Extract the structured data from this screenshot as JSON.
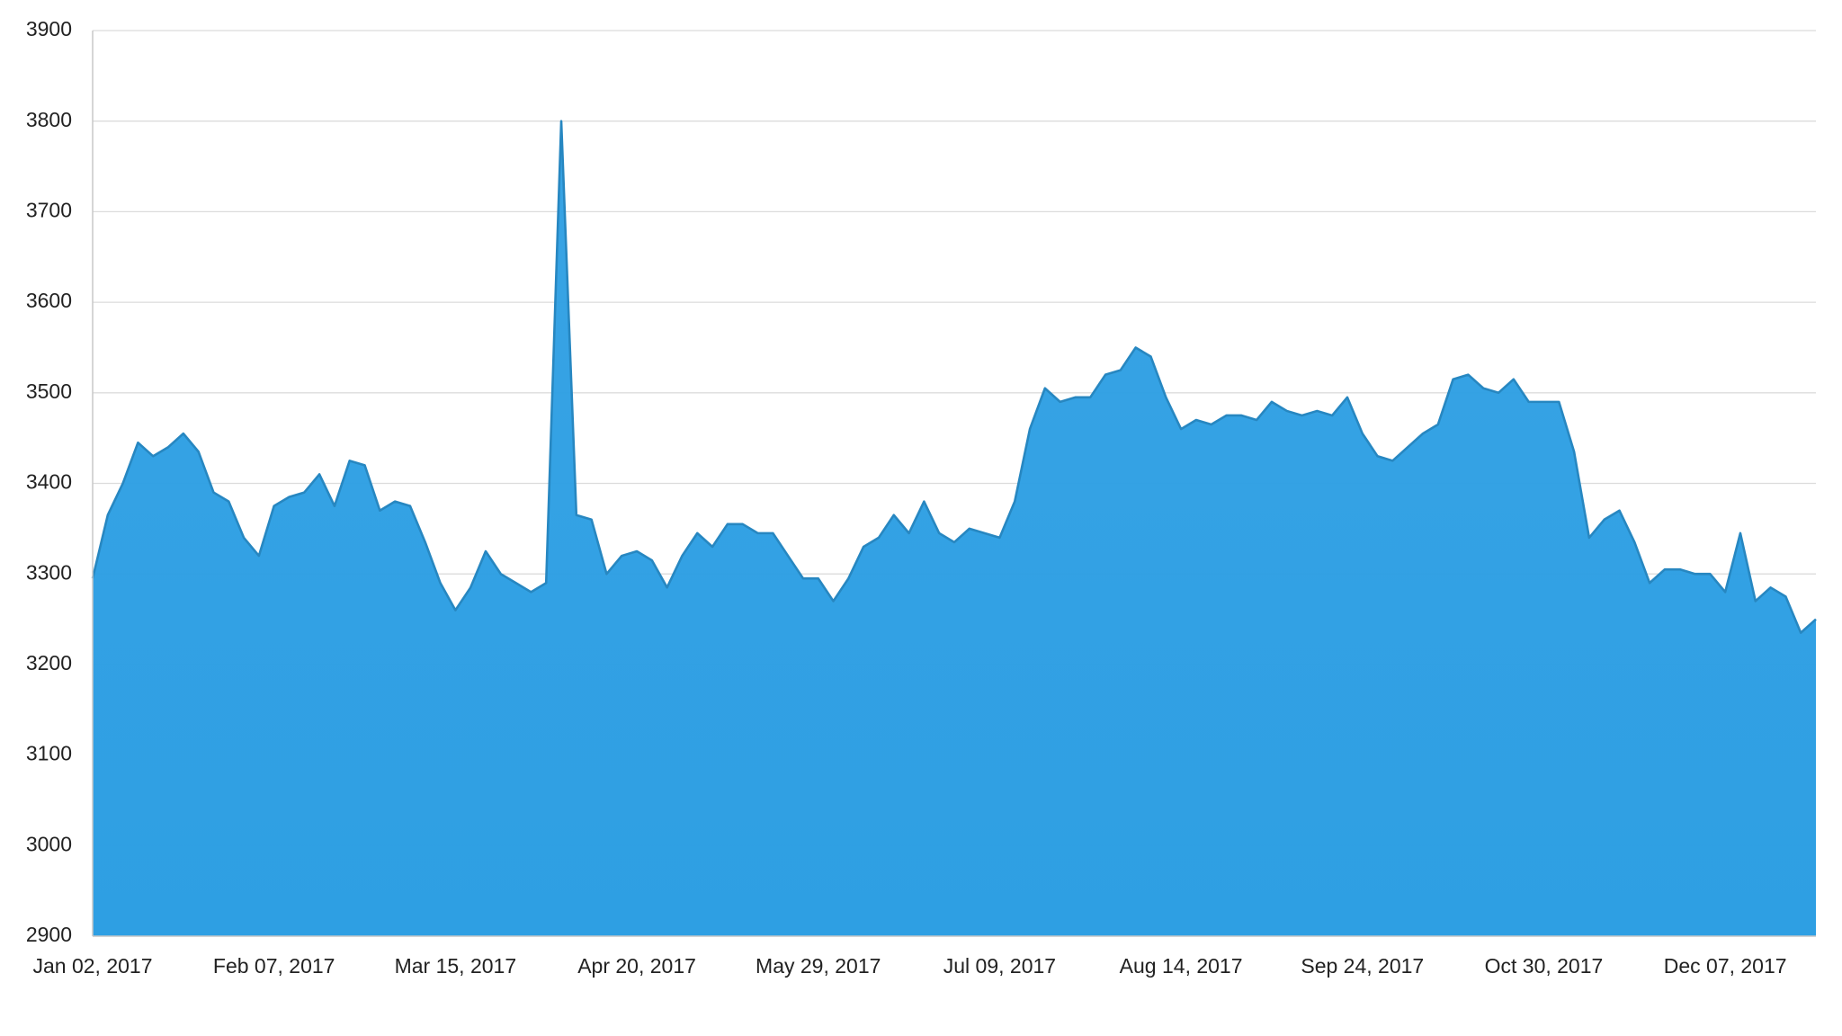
{
  "chart_data": {
    "type": "area",
    "categories": [
      "Jan 02, 2017",
      null,
      null,
      null,
      null,
      null,
      null,
      null,
      null,
      null,
      null,
      null,
      "Feb 07, 2017",
      null,
      null,
      null,
      null,
      null,
      null,
      null,
      null,
      null,
      null,
      null,
      "Mar 15, 2017",
      null,
      null,
      null,
      null,
      null,
      null,
      null,
      null,
      null,
      null,
      null,
      "Apr 20, 2017",
      null,
      null,
      null,
      null,
      null,
      null,
      null,
      null,
      null,
      null,
      null,
      "May 29, 2017",
      null,
      null,
      null,
      null,
      null,
      null,
      null,
      null,
      null,
      null,
      null,
      "Jul 09, 2017",
      null,
      null,
      null,
      null,
      null,
      null,
      null,
      null,
      null,
      null,
      null,
      "Aug 14, 2017",
      null,
      null,
      null,
      null,
      null,
      null,
      null,
      null,
      null,
      null,
      null,
      "Sep 24, 2017",
      null,
      null,
      null,
      null,
      null,
      null,
      null,
      null,
      null,
      null,
      null,
      "Oct 30, 2017",
      null,
      null,
      null,
      null,
      null,
      null,
      null,
      null,
      null,
      null,
      null,
      "Dec 07, 2017",
      null,
      null,
      null,
      null,
      null,
      null
    ],
    "values": [
      3295,
      3365,
      3400,
      3445,
      3430,
      3440,
      3455,
      3435,
      3390,
      3380,
      3340,
      3320,
      3375,
      3385,
      3390,
      3410,
      3375,
      3425,
      3420,
      3370,
      3380,
      3375,
      3335,
      3290,
      3260,
      3285,
      3325,
      3300,
      3290,
      3280,
      3290,
      3800,
      3365,
      3360,
      3300,
      3320,
      3325,
      3315,
      3285,
      3320,
      3345,
      3330,
      3355,
      3355,
      3345,
      3345,
      3320,
      3295,
      3295,
      3270,
      3295,
      3330,
      3340,
      3365,
      3345,
      3380,
      3345,
      3335,
      3350,
      3345,
      3340,
      3380,
      3460,
      3505,
      3490,
      3495,
      3495,
      3520,
      3525,
      3550,
      3540,
      3495,
      3460,
      3470,
      3465,
      3475,
      3475,
      3470,
      3490,
      3480,
      3475,
      3480,
      3475,
      3495,
      3455,
      3430,
      3425,
      3440,
      3455,
      3465,
      3515,
      3520,
      3505,
      3500,
      3515,
      3490,
      3490,
      3490,
      3435,
      3340,
      3360,
      3370,
      3335,
      3290,
      3305,
      3305,
      3300,
      3300,
      3280,
      3345,
      3270,
      3285,
      3275,
      3235,
      3250
    ],
    "color": "#2e9fe3",
    "ylim": [
      2900,
      3900
    ],
    "yticks": [
      2900,
      3000,
      3100,
      3200,
      3300,
      3400,
      3500,
      3600,
      3700,
      3800,
      3900
    ],
    "grid": true
  }
}
